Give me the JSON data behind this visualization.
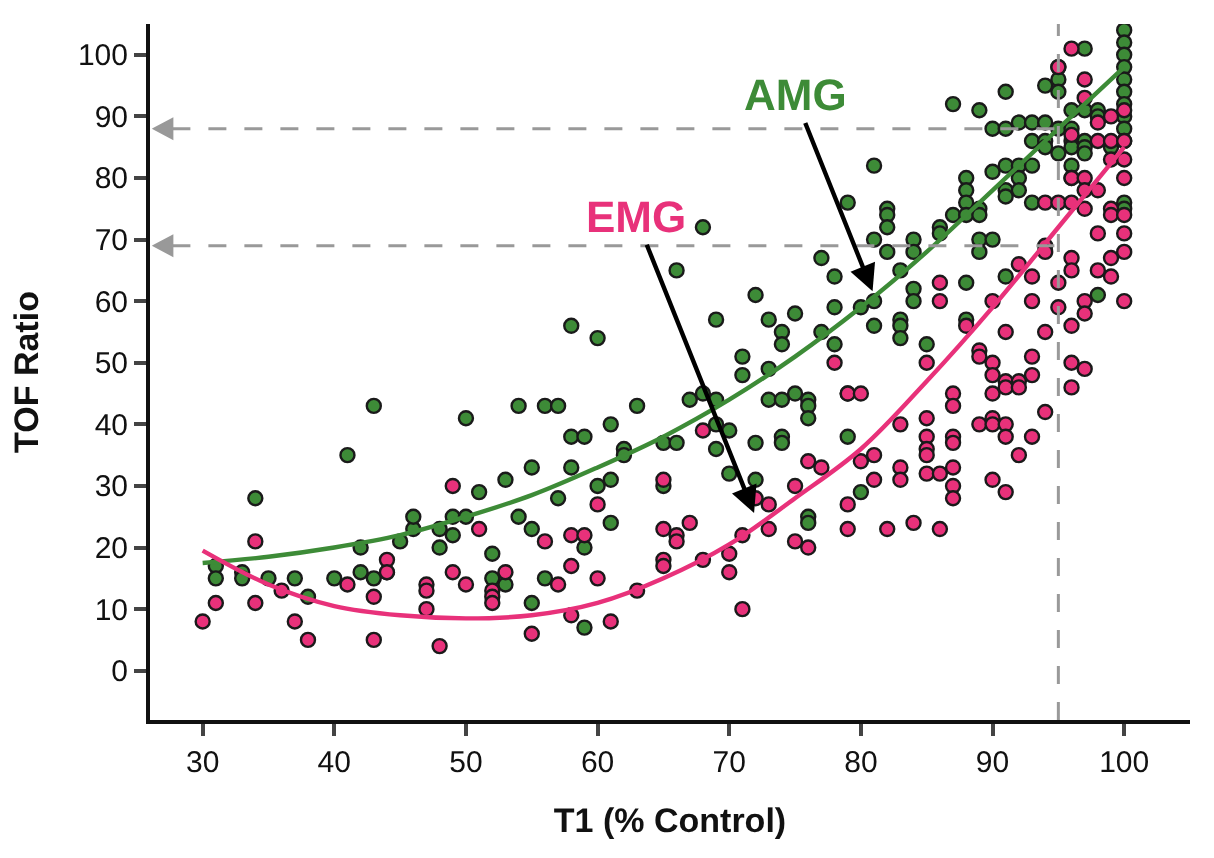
{
  "chart_data": {
    "type": "scatter",
    "xlabel": "T1 (% Control)",
    "ylabel": "TOF Ratio",
    "xlim": [
      26,
      105
    ],
    "ylim": [
      -8,
      105
    ],
    "xticks": [
      30,
      40,
      50,
      60,
      70,
      80,
      90,
      100
    ],
    "yticks": [
      0,
      10,
      20,
      30,
      40,
      50,
      60,
      70,
      80,
      90,
      100
    ],
    "marker": "circle",
    "series": [
      {
        "color": "#3d8b37",
        "x": [
          31,
          31,
          33,
          33,
          34,
          35,
          37,
          38,
          40,
          41,
          42,
          42,
          43,
          43,
          44,
          45,
          46,
          46,
          48,
          48,
          49,
          49,
          50,
          50,
          51,
          52,
          52,
          53,
          53,
          54,
          54,
          55,
          55,
          55,
          56,
          56,
          57,
          57,
          58,
          58,
          58,
          59,
          59,
          59,
          60,
          60,
          61,
          61,
          61,
          62,
          62,
          63,
          65,
          65,
          66,
          66,
          67,
          68,
          68,
          69,
          69,
          69,
          69,
          70,
          70,
          71,
          71,
          72,
          72,
          72,
          73,
          73,
          73,
          74,
          74,
          74,
          74,
          74,
          75,
          75,
          76,
          76,
          76,
          76,
          76,
          77,
          77,
          78,
          78,
          78,
          79,
          79,
          79,
          80,
          80,
          81,
          81,
          81,
          81,
          82,
          82,
          82,
          82,
          83,
          83,
          83,
          83,
          84,
          84,
          84,
          84,
          85,
          86,
          86,
          87,
          87,
          88,
          88,
          88,
          88,
          88,
          88,
          89,
          89,
          89,
          89,
          89,
          90,
          90,
          90,
          91,
          91,
          91,
          91,
          91,
          91,
          92,
          92,
          92,
          92,
          93,
          93,
          93,
          93,
          94,
          94,
          94,
          94,
          95,
          95,
          95,
          95,
          95,
          96,
          96,
          96,
          96,
          96,
          96,
          97,
          97,
          97,
          97,
          97,
          98,
          98,
          98,
          99,
          100,
          100,
          100,
          100,
          100,
          100,
          100,
          100,
          100,
          100,
          100,
          100
        ],
        "values": [
          17,
          15,
          16,
          15,
          28,
          15,
          15,
          12,
          15,
          35,
          16,
          20,
          43,
          15,
          16,
          21,
          23,
          25,
          20,
          23,
          22,
          25,
          25,
          41,
          29,
          19,
          15,
          14,
          31,
          25,
          43,
          33,
          11,
          23,
          43,
          15,
          43,
          28,
          38,
          33,
          56,
          38,
          20,
          7,
          54,
          30,
          40,
          31,
          24,
          36,
          35,
          43,
          37,
          30,
          65,
          37,
          44,
          45,
          72,
          57,
          44,
          40,
          36,
          39,
          32,
          51,
          48,
          61,
          37,
          31,
          57,
          49,
          44,
          55,
          53,
          44,
          38,
          37,
          58,
          45,
          44,
          43,
          41,
          25,
          24,
          67,
          55,
          64,
          59,
          53,
          76,
          45,
          38,
          59,
          29,
          82,
          70,
          60,
          56,
          75,
          74,
          72,
          68,
          65,
          57,
          56,
          54,
          70,
          68,
          62,
          60,
          53,
          72,
          71,
          92,
          74,
          80,
          78,
          76,
          74,
          63,
          57,
          91,
          75,
          74,
          70,
          68,
          88,
          81,
          70,
          94,
          88,
          82,
          78,
          77,
          64,
          89,
          82,
          80,
          78,
          89,
          86,
          82,
          76,
          95,
          89,
          86,
          85,
          98,
          96,
          94,
          88,
          84,
          91,
          88,
          86,
          85,
          82,
          80,
          101,
          91,
          86,
          85,
          84,
          91,
          90,
          61,
          85,
          104,
          102,
          100,
          98,
          96,
          94,
          92,
          90,
          88,
          86,
          76,
          75
        ]
      },
      {
        "color": "#e8317a",
        "x": [
          30,
          31,
          34,
          34,
          36,
          37,
          38,
          41,
          43,
          43,
          44,
          44,
          47,
          47,
          47,
          48,
          49,
          49,
          50,
          51,
          52,
          52,
          52,
          53,
          55,
          56,
          57,
          58,
          58,
          58,
          59,
          60,
          60,
          61,
          63,
          65,
          65,
          65,
          65,
          66,
          66,
          67,
          68,
          68,
          70,
          70,
          71,
          71,
          72,
          73,
          73,
          75,
          75,
          76,
          76,
          77,
          78,
          79,
          79,
          79,
          80,
          80,
          81,
          81,
          82,
          83,
          83,
          83,
          84,
          85,
          85,
          85,
          85,
          85,
          85,
          86,
          86,
          86,
          86,
          87,
          87,
          87,
          87,
          87,
          87,
          87,
          88,
          89,
          89,
          89,
          90,
          90,
          90,
          90,
          90,
          90,
          90,
          91,
          91,
          91,
          91,
          91,
          91,
          92,
          92,
          92,
          92,
          93,
          93,
          93,
          93,
          93,
          94,
          94,
          94,
          94,
          94,
          95,
          95,
          95,
          95,
          96,
          96,
          96,
          96,
          96,
          96,
          96,
          96,
          96,
          97,
          97,
          97,
          97,
          97,
          97,
          97,
          97,
          98,
          98,
          98,
          98,
          98,
          99,
          99,
          99,
          99,
          99,
          99,
          99,
          100,
          100,
          100,
          100,
          100,
          100,
          100,
          100
        ],
        "values": [
          8,
          11,
          21,
          11,
          13,
          8,
          5,
          14,
          12,
          5,
          18,
          16,
          14,
          13,
          10,
          4,
          30,
          16,
          14,
          23,
          13,
          12,
          11,
          16,
          6,
          21,
          14,
          22,
          17,
          9,
          22,
          27,
          15,
          8,
          13,
          31,
          23,
          18,
          17,
          22,
          21,
          24,
          39,
          18,
          19,
          16,
          22,
          10,
          28,
          27,
          23,
          30,
          21,
          34,
          20,
          33,
          50,
          45,
          27,
          23,
          45,
          34,
          35,
          31,
          23,
          40,
          33,
          31,
          24,
          50,
          41,
          38,
          36,
          35,
          32,
          63,
          60,
          32,
          23,
          45,
          43,
          38,
          37,
          33,
          30,
          28,
          56,
          52,
          51,
          40,
          60,
          50,
          48,
          45,
          41,
          40,
          31,
          55,
          47,
          46,
          40,
          38,
          29,
          66,
          47,
          46,
          35,
          64,
          60,
          51,
          48,
          38,
          76,
          69,
          68,
          55,
          42,
          98,
          76,
          63,
          59,
          101,
          87,
          80,
          76,
          67,
          65,
          56,
          50,
          46,
          96,
          93,
          80,
          78,
          75,
          60,
          58,
          49,
          89,
          86,
          78,
          71,
          65,
          90,
          86,
          83,
          75,
          74,
          67,
          64,
          91,
          86,
          83,
          80,
          74,
          71,
          68,
          60
        ]
      },
      {
        "type": "line",
        "color": "#3d8b37",
        "marker": "none",
        "line_style": "solid",
        "x": [
          30,
          35,
          40,
          45,
          50,
          55,
          60,
          65,
          70,
          75,
          80,
          85,
          90,
          95,
          100
        ],
        "values": [
          17.5,
          18.5,
          20,
          22,
          25,
          28.5,
          33,
          38,
          44,
          51,
          59,
          68,
          78,
          88,
          98
        ]
      },
      {
        "type": "line",
        "color": "#e8317a",
        "marker": "none",
        "line_style": "solid",
        "x": [
          30,
          35,
          40,
          45,
          50,
          55,
          60,
          65,
          70,
          75,
          80,
          85,
          90,
          95,
          100
        ],
        "values": [
          19.5,
          14,
          10.5,
          9,
          8.5,
          9,
          11,
          15,
          20.5,
          28,
          36,
          47,
          59,
          72,
          85
        ]
      }
    ],
    "ref_lines": [
      {
        "axis": "x",
        "value": 95,
        "color": "#999999",
        "line_style": "dashed"
      },
      {
        "axis": "y",
        "value": 88,
        "color": "#999999",
        "line_style": "dashed"
      },
      {
        "axis": "y",
        "value": 69,
        "color": "#999999",
        "line_style": "dashed"
      }
    ],
    "annotations": [
      {
        "text": "AMG",
        "x": 81,
        "y": 61
      },
      {
        "text": "EMG",
        "x": 72,
        "y": 25
      }
    ]
  }
}
